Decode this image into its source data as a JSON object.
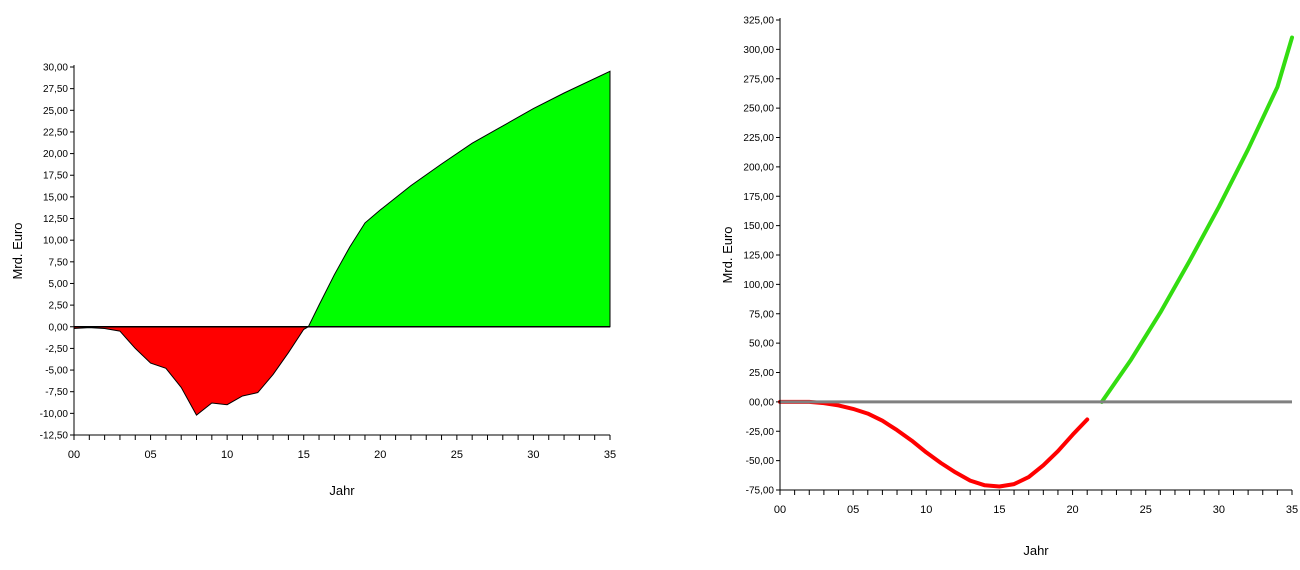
{
  "chart_data": [
    {
      "type": "area",
      "xlabel": "Jahr",
      "ylabel": "Mrd. Euro",
      "xlim": [
        0,
        35
      ],
      "ylim": [
        -12.5,
        30
      ],
      "x_tick_labels": [
        "00",
        "05",
        "10",
        "15",
        "20",
        "25",
        "30",
        "35"
      ],
      "y_tick_labels": [
        "-12,50",
        "-10,00",
        "-7,50",
        "-5,00",
        "-2,50",
        "0,00",
        "2,50",
        "5,00",
        "7,50",
        "10,00",
        "12,50",
        "15,00",
        "17,50",
        "20,00",
        "22,50",
        "25,00",
        "27,50",
        "30,00"
      ],
      "grid": false,
      "series": [
        {
          "color": "#ff0000",
          "x": [
            0,
            1,
            2,
            3,
            4,
            5,
            6,
            7,
            8,
            9,
            10,
            11,
            12,
            13,
            14,
            15,
            15.3
          ],
          "values": [
            -0.2,
            -0.1,
            -0.2,
            -0.5,
            -2.5,
            -4.2,
            -4.8,
            -7.0,
            -10.2,
            -8.8,
            -9.0,
            -8.0,
            -7.6,
            -5.5,
            -3.0,
            -0.3,
            0
          ]
        },
        {
          "color": "#00ff00",
          "x": [
            15.3,
            16,
            17,
            18,
            19,
            20,
            22,
            24,
            26,
            28,
            30,
            32,
            35
          ],
          "values": [
            0,
            2.5,
            6.0,
            9.2,
            12.0,
            13.5,
            16.3,
            18.8,
            21.2,
            23.2,
            25.2,
            27.0,
            29.5
          ]
        }
      ]
    },
    {
      "type": "line",
      "xlabel": "Jahr",
      "ylabel": "Mrd. Euro",
      "xlim": [
        0,
        35
      ],
      "ylim": [
        -75,
        325
      ],
      "x_tick_labels": [
        "00",
        "05",
        "10",
        "15",
        "20",
        "25",
        "30",
        "35"
      ],
      "y_tick_labels": [
        "-75,00",
        "-50,00",
        "-25,00",
        "00,00",
        "25,00",
        "50,00",
        "75,00",
        "100,00",
        "125,00",
        "150,00",
        "175,00",
        "200,00",
        "225,00",
        "250,00",
        "275,00",
        "300,00",
        "325,00"
      ],
      "grid": false,
      "zero_line_color": "#808080",
      "series": [
        {
          "color": "#ff0000",
          "x": [
            0,
            1,
            2,
            3,
            4,
            5,
            6,
            7,
            8,
            9,
            10,
            11,
            12,
            13,
            14,
            15,
            16,
            17,
            18,
            19,
            20,
            21
          ],
          "values": [
            0,
            0,
            0,
            -1,
            -3,
            -6,
            -10,
            -16,
            -24,
            -33,
            -43,
            -52,
            -60,
            -67,
            -71,
            -72,
            -70,
            -64,
            -54,
            -42,
            -28,
            -15
          ]
        },
        {
          "color": "#33dd11",
          "x": [
            22,
            24,
            26,
            28,
            30,
            32,
            34,
            35
          ],
          "values": [
            0,
            36,
            76,
            120,
            166,
            215,
            268,
            310
          ]
        }
      ]
    }
  ]
}
